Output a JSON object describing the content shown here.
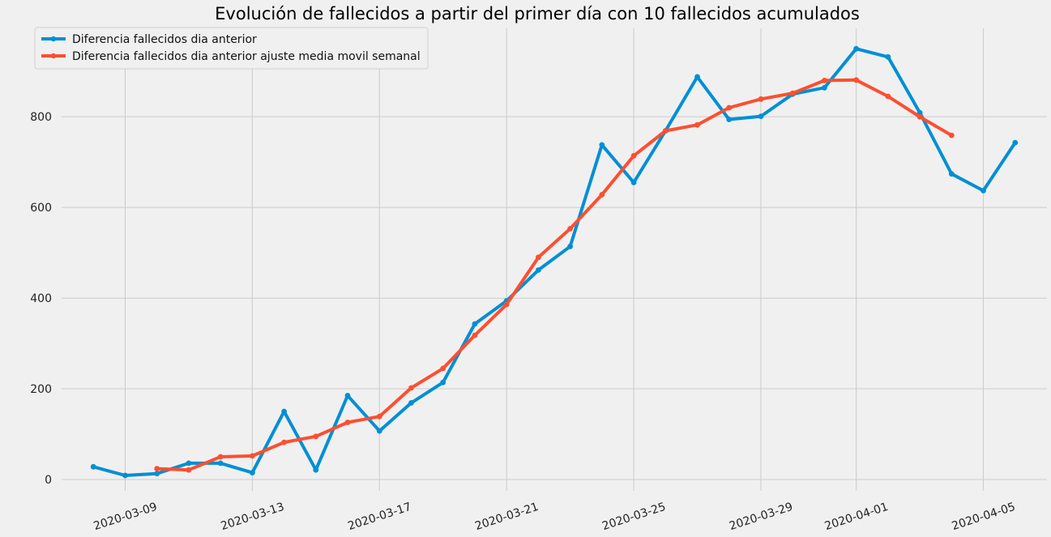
{
  "chart_data": {
    "type": "line",
    "title": "Evolución de fallecidos a partir del primer día con 10 fallecidos acumulados",
    "xlabel": "",
    "ylabel": "",
    "x_axis": "date",
    "xlim": [
      "2020-03-07",
      "2020-04-07"
    ],
    "ylim": [
      -25,
      995
    ],
    "x_ticks": [
      "2020-03-09",
      "2020-03-13",
      "2020-03-17",
      "2020-03-21",
      "2020-03-25",
      "2020-03-29",
      "2020-04-01",
      "2020-04-05"
    ],
    "y_ticks": [
      0,
      200,
      400,
      600,
      800
    ],
    "grid": true,
    "legend_position": "top-left",
    "series": [
      {
        "name": "Diferencia fallecidos dia anterior",
        "color": "#008fd5",
        "x": [
          "2020-03-08",
          "2020-03-09",
          "2020-03-10",
          "2020-03-11",
          "2020-03-12",
          "2020-03-13",
          "2020-03-14",
          "2020-03-15",
          "2020-03-16",
          "2020-03-17",
          "2020-03-18",
          "2020-03-19",
          "2020-03-20",
          "2020-03-21",
          "2020-03-22",
          "2020-03-23",
          "2020-03-24",
          "2020-03-25",
          "2020-03-26",
          "2020-03-27",
          "2020-03-28",
          "2020-03-29",
          "2020-03-30",
          "2020-03-31",
          "2020-04-01",
          "2020-04-02",
          "2020-04-03",
          "2020-04-04",
          "2020-04-05",
          "2020-04-06"
        ],
        "values": [
          28,
          9,
          13,
          36,
          36,
          15,
          150,
          21,
          185,
          107,
          169,
          214,
          343,
          394,
          462,
          514,
          738,
          655,
          769,
          888,
          794,
          801,
          850,
          864,
          950,
          932,
          809,
          674,
          637,
          743
        ]
      },
      {
        "name": "Diferencia fallecidos dia anterior ajuste media movil semanal",
        "color": "#fc4f30",
        "x": [
          "2020-03-10",
          "2020-03-11",
          "2020-03-12",
          "2020-03-13",
          "2020-03-14",
          "2020-03-15",
          "2020-03-16",
          "2020-03-17",
          "2020-03-18",
          "2020-03-19",
          "2020-03-20",
          "2020-03-21",
          "2020-03-22",
          "2020-03-23",
          "2020-03-24",
          "2020-03-25",
          "2020-03-26",
          "2020-03-27",
          "2020-03-28",
          "2020-03-29",
          "2020-03-30",
          "2020-03-31",
          "2020-04-01",
          "2020-04-02",
          "2020-04-03",
          "2020-04-04"
        ],
        "values": [
          24,
          21,
          50,
          52,
          82,
          95,
          126,
          139,
          202,
          245,
          318,
          386,
          490,
          553,
          628,
          714,
          769,
          782,
          820,
          839,
          852,
          880,
          881,
          845,
          800,
          759
        ]
      }
    ]
  }
}
